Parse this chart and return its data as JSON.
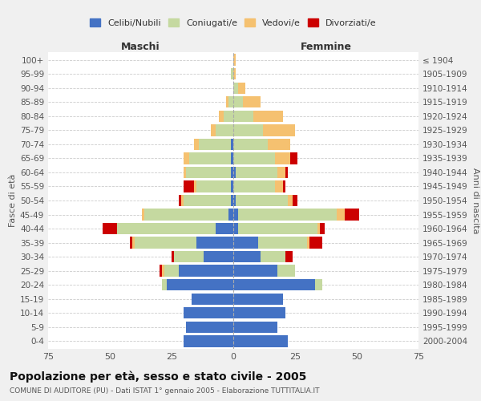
{
  "age_groups": [
    "0-4",
    "5-9",
    "10-14",
    "15-19",
    "20-24",
    "25-29",
    "30-34",
    "35-39",
    "40-44",
    "45-49",
    "50-54",
    "55-59",
    "60-64",
    "65-69",
    "70-74",
    "75-79",
    "80-84",
    "85-89",
    "90-94",
    "95-99",
    "100+"
  ],
  "birth_years": [
    "2000-2004",
    "1995-1999",
    "1990-1994",
    "1985-1989",
    "1980-1984",
    "1975-1979",
    "1970-1974",
    "1965-1969",
    "1960-1964",
    "1955-1959",
    "1950-1954",
    "1945-1949",
    "1940-1944",
    "1935-1939",
    "1930-1934",
    "1925-1929",
    "1920-1924",
    "1915-1919",
    "1910-1914",
    "1905-1909",
    "≤ 1904"
  ],
  "male": {
    "celibe": [
      20,
      19,
      20,
      17,
      27,
      22,
      12,
      15,
      7,
      2,
      1,
      1,
      1,
      1,
      1,
      0,
      0,
      0,
      0,
      0,
      0
    ],
    "coniugato": [
      0,
      0,
      0,
      0,
      2,
      6,
      12,
      25,
      40,
      34,
      19,
      14,
      18,
      17,
      13,
      7,
      4,
      2,
      0,
      1,
      0
    ],
    "vedovo": [
      0,
      0,
      0,
      0,
      0,
      1,
      0,
      1,
      0,
      1,
      1,
      1,
      1,
      2,
      2,
      2,
      2,
      1,
      0,
      0,
      0
    ],
    "divorziato": [
      0,
      0,
      0,
      0,
      0,
      1,
      1,
      1,
      6,
      0,
      1,
      4,
      0,
      0,
      0,
      0,
      0,
      0,
      0,
      0,
      0
    ]
  },
  "female": {
    "nubile": [
      22,
      18,
      21,
      20,
      33,
      18,
      11,
      10,
      2,
      2,
      1,
      0,
      1,
      0,
      0,
      0,
      0,
      0,
      0,
      0,
      0
    ],
    "coniugata": [
      0,
      0,
      0,
      0,
      3,
      7,
      10,
      20,
      32,
      40,
      21,
      17,
      17,
      17,
      14,
      12,
      8,
      4,
      2,
      0,
      0
    ],
    "vedova": [
      0,
      0,
      0,
      0,
      0,
      0,
      0,
      1,
      1,
      3,
      2,
      3,
      3,
      6,
      9,
      13,
      12,
      7,
      3,
      1,
      1
    ],
    "divorziata": [
      0,
      0,
      0,
      0,
      0,
      0,
      3,
      5,
      2,
      6,
      2,
      1,
      1,
      3,
      0,
      0,
      0,
      0,
      0,
      0,
      0
    ]
  },
  "colors": {
    "celibe": "#4472c4",
    "coniugato": "#c5d9a0",
    "vedovo": "#f5c170",
    "divorziato": "#cc0000"
  },
  "xlim": 75,
  "title": "Popolazione per età, sesso e stato civile - 2005",
  "subtitle": "COMUNE DI AUDITORE (PU) - Dati ISTAT 1° gennaio 2005 - Elaborazione TUTTITALIA.IT",
  "ylabel_left": "Fasce di età",
  "ylabel_right": "Anni di nascita",
  "legend_labels": [
    "Celibi/Nubili",
    "Coniugati/e",
    "Vedovi/e",
    "Divorziati/e"
  ],
  "bg_color": "#f0f0f0",
  "plot_bg_color": "#ffffff",
  "grid_color": "#cccccc",
  "maschi_label_color": "#333333",
  "femmine_label_color": "#333333"
}
